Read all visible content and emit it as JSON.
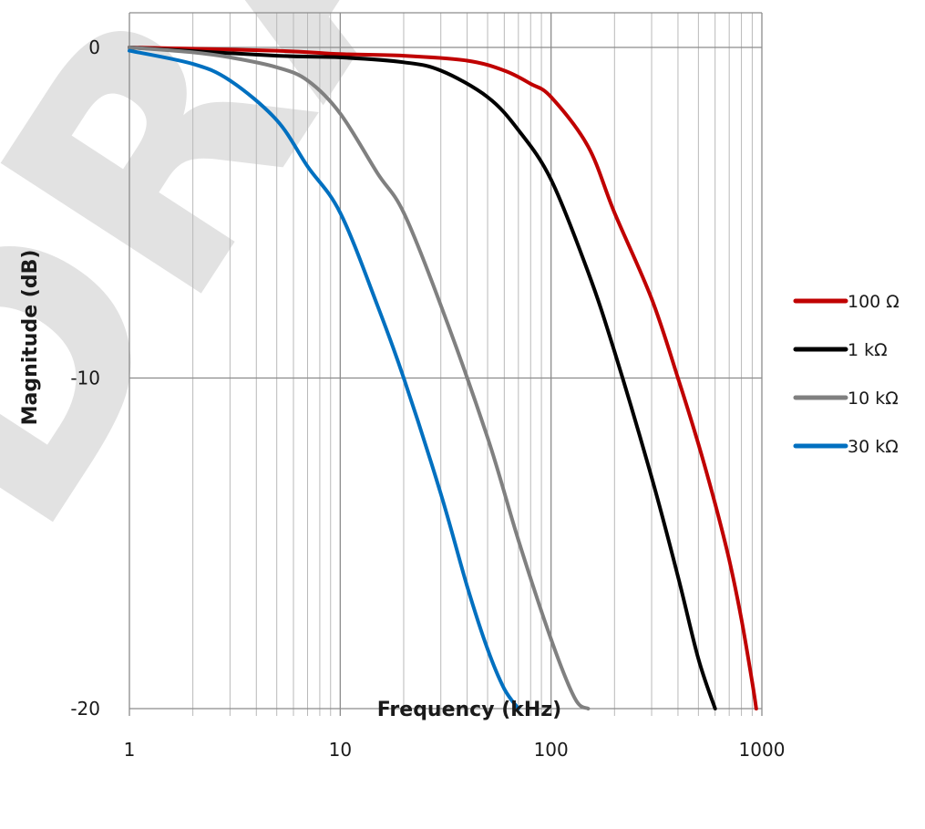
{
  "watermark": "DRAFT",
  "chart_data": {
    "type": "line",
    "title": "",
    "xlabel": "Frequency (kHz)",
    "ylabel": "Magnitude (dB)",
    "xscale": "log",
    "xlim": [
      1,
      1000
    ],
    "ylim": [
      -20,
      0
    ],
    "grid": true,
    "legend_position": "right",
    "x_tick_labels": [
      "1",
      "10",
      "100",
      "1000"
    ],
    "y_tick_labels": [
      "0",
      "-10",
      "-20"
    ],
    "x_ticks": [
      1,
      10,
      100,
      1000
    ],
    "y_ticks": [
      0,
      -10,
      -20
    ],
    "series": [
      {
        "name": "100 Ω",
        "color": "#c00000",
        "x": [
          1,
          5,
          10,
          20,
          40,
          60,
          80,
          100,
          150,
          200,
          300,
          400,
          500,
          600,
          700,
          800,
          900,
          940
        ],
        "y": [
          0,
          -0.1,
          -0.2,
          -0.25,
          -0.4,
          -0.7,
          -1.1,
          -1.5,
          -3.0,
          -5.0,
          -7.6,
          -10.0,
          -12.0,
          -13.8,
          -15.5,
          -17.3,
          -19.2,
          -20.0
        ]
      },
      {
        "name": "1 kΩ",
        "color": "#000000",
        "x": [
          1,
          5,
          10,
          20,
          30,
          50,
          70,
          100,
          150,
          200,
          300,
          400,
          500,
          600
        ],
        "y": [
          0,
          -0.25,
          -0.3,
          -0.45,
          -0.7,
          -1.5,
          -2.5,
          -4.0,
          -6.8,
          -9.2,
          -13.0,
          -16.0,
          -18.5,
          -20.0
        ]
      },
      {
        "name": "10 kΩ",
        "color": "#808080",
        "x": [
          1,
          2,
          3,
          5,
          7,
          10,
          15,
          20,
          30,
          50,
          70,
          100,
          130,
          150
        ],
        "y": [
          0,
          -0.15,
          -0.3,
          -0.6,
          -1.0,
          -2.0,
          -3.8,
          -5.0,
          -7.8,
          -11.8,
          -14.9,
          -17.9,
          -19.7,
          -20.0
        ]
      },
      {
        "name": "30 kΩ",
        "color": "#0070c0",
        "x": [
          1,
          2,
          3,
          5,
          7,
          10,
          15,
          20,
          30,
          40,
          50,
          60,
          70
        ],
        "y": [
          -0.1,
          -0.5,
          -1.0,
          -2.2,
          -3.6,
          -5.0,
          -7.8,
          -10.0,
          -13.5,
          -16.3,
          -18.2,
          -19.4,
          -20.0
        ]
      }
    ]
  }
}
